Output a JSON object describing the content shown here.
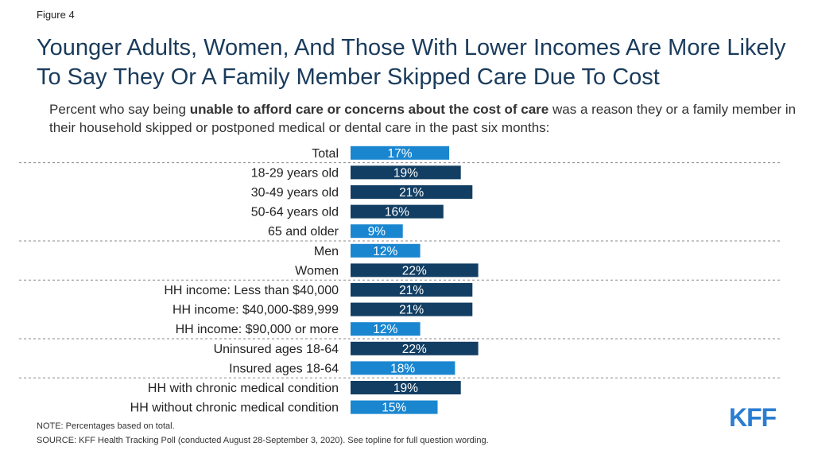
{
  "figure_label": "Figure 4",
  "subtitle": {
    "pre": "Percent who say being ",
    "bold": "unable to afford care or concerns about the cost of care",
    "post": " was a reason they or a family member in their household skipped or postponed medical or dental care in the past six months:"
  },
  "note": "NOTE: Percentages based on total.",
  "source": "SOURCE: KFF Health Tracking Poll (conducted August 28-September 3, 2020). See topline for full question wording.",
  "logo": "KFF",
  "colors": {
    "light_bar": "#1a86d0",
    "dark_bar": "#123e63",
    "separator": "#888888"
  },
  "chart_data": {
    "type": "bar",
    "orientation": "horizontal",
    "title": "Younger Adults, Women, And Those With Lower Incomes Are More Likely To Say They Or A Family Member Skipped Care Due To Cost",
    "xlim": [
      0,
      100
    ],
    "grid": false,
    "categories": [
      "Total",
      "18-29 years old",
      "30-49 years old",
      "50-64 years old",
      "65 and older",
      "Men",
      "Women",
      "HH income: Less than $40,000",
      "HH income: $40,000-$89,999",
      "HH income: $90,000 or more",
      "Uninsured ages 18-64",
      "Insured ages 18-64",
      "HH with chronic medical condition",
      "HH without chronic medical condition"
    ],
    "values": [
      17,
      19,
      21,
      16,
      9,
      12,
      22,
      21,
      21,
      12,
      22,
      18,
      19,
      15
    ],
    "labels": [
      "17%",
      "19%",
      "21%",
      "16%",
      "9%",
      "12%",
      "22%",
      "21%",
      "21%",
      "12%",
      "22%",
      "18%",
      "19%",
      "15%"
    ],
    "highlight": [
      false,
      true,
      true,
      true,
      false,
      false,
      true,
      true,
      true,
      false,
      true,
      false,
      true,
      false
    ],
    "group_breaks_after": [
      0,
      4,
      6,
      9,
      11
    ]
  }
}
